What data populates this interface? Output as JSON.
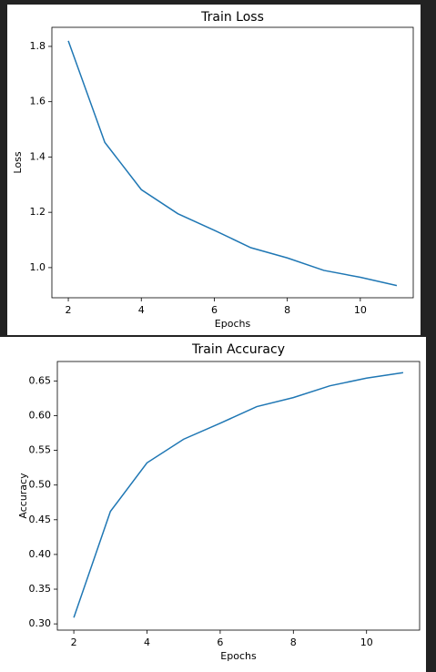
{
  "chart_data": [
    {
      "type": "line",
      "title": "Train Loss",
      "xlabel": "Epochs",
      "ylabel": "Loss",
      "x": [
        2,
        3,
        4,
        5,
        6,
        7,
        8,
        9,
        10,
        11
      ],
      "series": [
        {
          "name": "Loss",
          "color": "#1f77b4",
          "values": [
            1.82,
            1.453,
            1.282,
            1.195,
            1.135,
            1.072,
            1.035,
            0.99,
            0.965,
            0.935
          ]
        }
      ],
      "xlim": [
        1.55,
        11.45
      ],
      "xticks": [
        2,
        4,
        6,
        8,
        10
      ],
      "ylim": [
        0.891,
        1.869
      ],
      "yticks": [
        {
          "value": 1,
          "label": "1.0"
        },
        1.2,
        1.4,
        1.6,
        1.8
      ]
    },
    {
      "type": "line",
      "title": "Train Accuracy",
      "xlabel": "Epochs",
      "ylabel": "Accuracy",
      "x": [
        2,
        3,
        4,
        5,
        6,
        7,
        8,
        9,
        10,
        11
      ],
      "series": [
        {
          "name": "Accuracy",
          "color": "#1f77b4",
          "values": [
            0.309,
            0.462,
            0.532,
            0.566,
            0.589,
            0.613,
            0.626,
            0.643,
            0.654,
            0.662
          ]
        }
      ],
      "xlim": [
        1.55,
        11.45
      ],
      "xticks": [
        2,
        4,
        6,
        8,
        10
      ],
      "ylim": [
        0.291,
        0.678
      ],
      "yticks": [
        {
          "value": 0.3,
          "label": "0.30"
        },
        0.35,
        {
          "value": 0.4,
          "label": "0.40"
        },
        0.45,
        {
          "value": 0.5,
          "label": "0.50"
        },
        0.55,
        {
          "value": 0.6,
          "label": "0.60"
        },
        0.65
      ]
    }
  ]
}
